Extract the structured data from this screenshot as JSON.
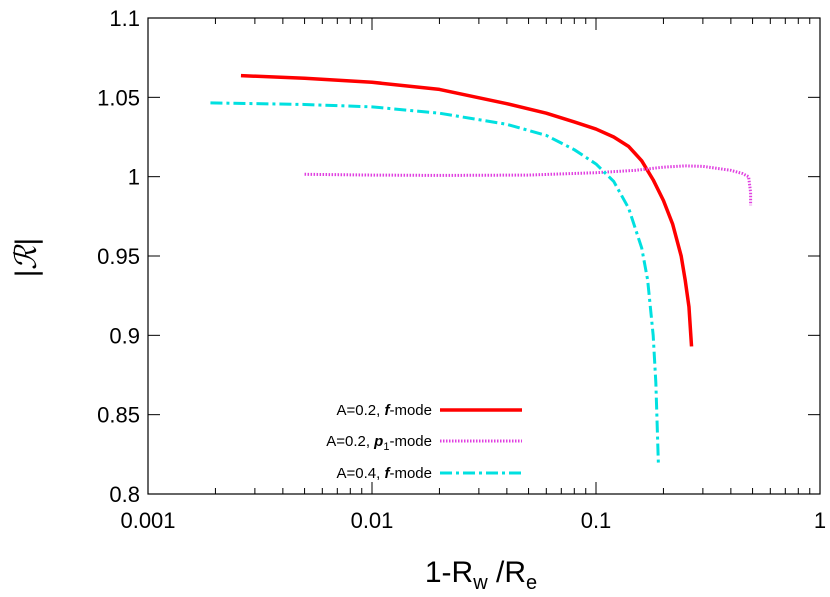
{
  "chart_data": {
    "type": "line",
    "xscale": "log",
    "xlim": [
      0.001,
      1
    ],
    "ylim": [
      0.8,
      1.1
    ],
    "xticks": [
      {
        "value": 0.001,
        "label": "0.001"
      },
      {
        "value": 0.01,
        "label": "0.01"
      },
      {
        "value": 0.1,
        "label": "0.1"
      },
      {
        "value": 1,
        "label": "1"
      }
    ],
    "yticks": [
      {
        "value": 0.8,
        "label": "0.8"
      },
      {
        "value": 0.85,
        "label": "0.85"
      },
      {
        "value": 0.9,
        "label": "0.9"
      },
      {
        "value": 0.95,
        "label": "0.95"
      },
      {
        "value": 1.0,
        "label": "1"
      },
      {
        "value": 1.05,
        "label": "1.05"
      },
      {
        "value": 1.1,
        "label": "1.1"
      }
    ],
    "xlabel": {
      "base": "1-R",
      "sub1": "w",
      "mid": " /R",
      "sub2": "e"
    },
    "ylabel": "|ℛ|",
    "legend_position": "bottom-center",
    "series": [
      {
        "name": "A=0.2, f-mode",
        "label_plain": "A=0.2, ",
        "label_bold": "f",
        "label_sub": "",
        "label_suffix": "-mode",
        "color": "#ff0000",
        "style": "solid",
        "points": [
          [
            0.0026,
            1.0637
          ],
          [
            0.005,
            1.062
          ],
          [
            0.01,
            1.0595
          ],
          [
            0.02,
            1.055
          ],
          [
            0.04,
            1.046
          ],
          [
            0.06,
            1.04
          ],
          [
            0.08,
            1.0345
          ],
          [
            0.1,
            1.03
          ],
          [
            0.12,
            1.025
          ],
          [
            0.14,
            1.019
          ],
          [
            0.16,
            1.01
          ],
          [
            0.18,
            0.998
          ],
          [
            0.2,
            0.985
          ],
          [
            0.22,
            0.97
          ],
          [
            0.24,
            0.95
          ],
          [
            0.25,
            0.935
          ],
          [
            0.26,
            0.918
          ],
          [
            0.265,
            0.9
          ],
          [
            0.267,
            0.893
          ]
        ]
      },
      {
        "name": "A=0.2, p1-mode",
        "label_plain": "A=0.2, ",
        "label_bold": "p",
        "label_sub": "1",
        "label_suffix": "-mode",
        "color": "#e040e0",
        "style": "dotted",
        "points": [
          [
            0.005,
            1.0015
          ],
          [
            0.01,
            1.001
          ],
          [
            0.02,
            1.0008
          ],
          [
            0.05,
            1.001
          ],
          [
            0.1,
            1.0025
          ],
          [
            0.15,
            1.004
          ],
          [
            0.2,
            1.006
          ],
          [
            0.25,
            1.0068
          ],
          [
            0.3,
            1.0065
          ],
          [
            0.4,
            1.004
          ],
          [
            0.45,
            1.002
          ],
          [
            0.48,
            1.0
          ],
          [
            0.49,
            0.99
          ],
          [
            0.49,
            0.982
          ]
        ]
      },
      {
        "name": "A=0.4, f-mode",
        "label_plain": "A=0.4, ",
        "label_bold": "f",
        "label_sub": "",
        "label_suffix": "-mode",
        "color": "#00e0e0",
        "style": "dashdot",
        "points": [
          [
            0.0019,
            1.0465
          ],
          [
            0.005,
            1.0455
          ],
          [
            0.01,
            1.044
          ],
          [
            0.02,
            1.04
          ],
          [
            0.04,
            1.033
          ],
          [
            0.06,
            1.026
          ],
          [
            0.08,
            1.017
          ],
          [
            0.1,
            1.008
          ],
          [
            0.12,
            0.997
          ],
          [
            0.14,
            0.98
          ],
          [
            0.16,
            0.955
          ],
          [
            0.17,
            0.935
          ],
          [
            0.18,
            0.9
          ],
          [
            0.185,
            0.87
          ],
          [
            0.19,
            0.818
          ]
        ]
      }
    ]
  }
}
